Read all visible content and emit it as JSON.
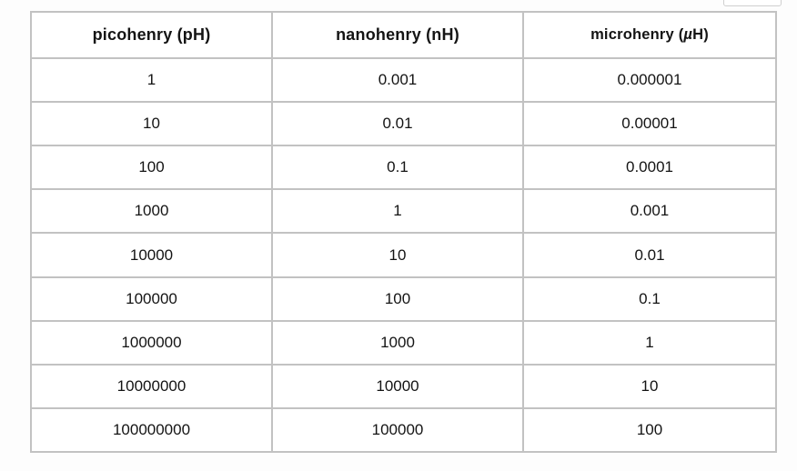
{
  "page": {
    "background": "#fdfdfd",
    "table_border_outer": "#9f9f9f",
    "table_border_inner": "#c2c2c2",
    "text_color": "#141414"
  },
  "table": {
    "headers": {
      "col1": "picohenry (pH)",
      "col2": "nanohenry (nH)",
      "col3_prefix": "microhenry (",
      "col3_mu": "µ",
      "col3_suffix": "H)"
    },
    "rows": [
      [
        "1",
        "0.001",
        "0.000001"
      ],
      [
        "10",
        "0.01",
        "0.00001"
      ],
      [
        "100",
        "0.1",
        "0.0001"
      ],
      [
        "1000",
        "1",
        "0.001"
      ],
      [
        "10000",
        "10",
        "0.01"
      ],
      [
        "100000",
        "100",
        "0.1"
      ],
      [
        "1000000",
        "1000",
        "1"
      ],
      [
        "10000000",
        "10000",
        "10"
      ],
      [
        "100000000",
        "100000",
        "100"
      ]
    ]
  },
  "chart_data": {
    "type": "table",
    "title": "",
    "columns": [
      "picohenry (pH)",
      "nanohenry (nH)",
      "microhenry (µH)"
    ],
    "rows": [
      [
        1,
        0.001,
        1e-06
      ],
      [
        10,
        0.01,
        1e-05
      ],
      [
        100,
        0.1,
        0.0001
      ],
      [
        1000,
        1,
        0.001
      ],
      [
        10000,
        10,
        0.01
      ],
      [
        100000,
        100,
        0.1
      ],
      [
        1000000,
        1000,
        1
      ],
      [
        10000000,
        10000,
        10
      ],
      [
        100000000,
        100000,
        100
      ]
    ],
    "layout_hints": {
      "header_bold": true,
      "all_cells_centered": true,
      "grid": "full-borders"
    }
  }
}
